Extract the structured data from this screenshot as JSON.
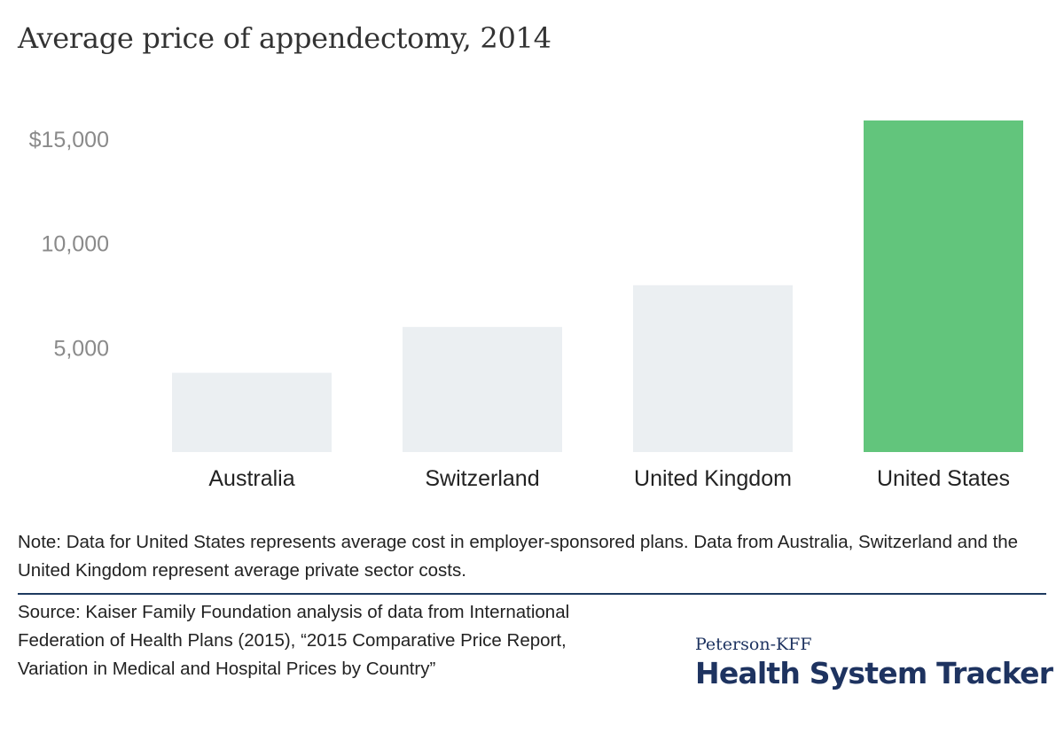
{
  "title": "Average price of appendectomy, 2014",
  "chart_data": {
    "type": "bar",
    "title": "Average price of appendectomy, 2014",
    "categories": [
      "Australia",
      "Switzerland",
      "United Kingdom",
      "United States"
    ],
    "values": [
      3800,
      6000,
      8000,
      15900
    ],
    "ylim": [
      0,
      17000
    ],
    "yticks": [
      5000,
      10000,
      15000
    ],
    "ytick_labels": [
      "5,000",
      "10,000",
      "$15,000"
    ],
    "grid": false,
    "colors": {
      "default": "#ebeff2",
      "highlight": "#62c57c"
    },
    "highlight_index": 3
  },
  "note": "Note: Data for United States represents average cost in employer-sponsored plans. Data from Australia, Switzerland and the United Kingdom represent average private sector costs.",
  "source": "Source: Kaiser Family Foundation analysis of data from International Federation of Health Plans (2015), “2015 Comparative Price Report, Variation in Medical and Hospital Prices by Country”",
  "logo": {
    "top": "Peterson-KFF",
    "main": "Health System Tracker"
  }
}
